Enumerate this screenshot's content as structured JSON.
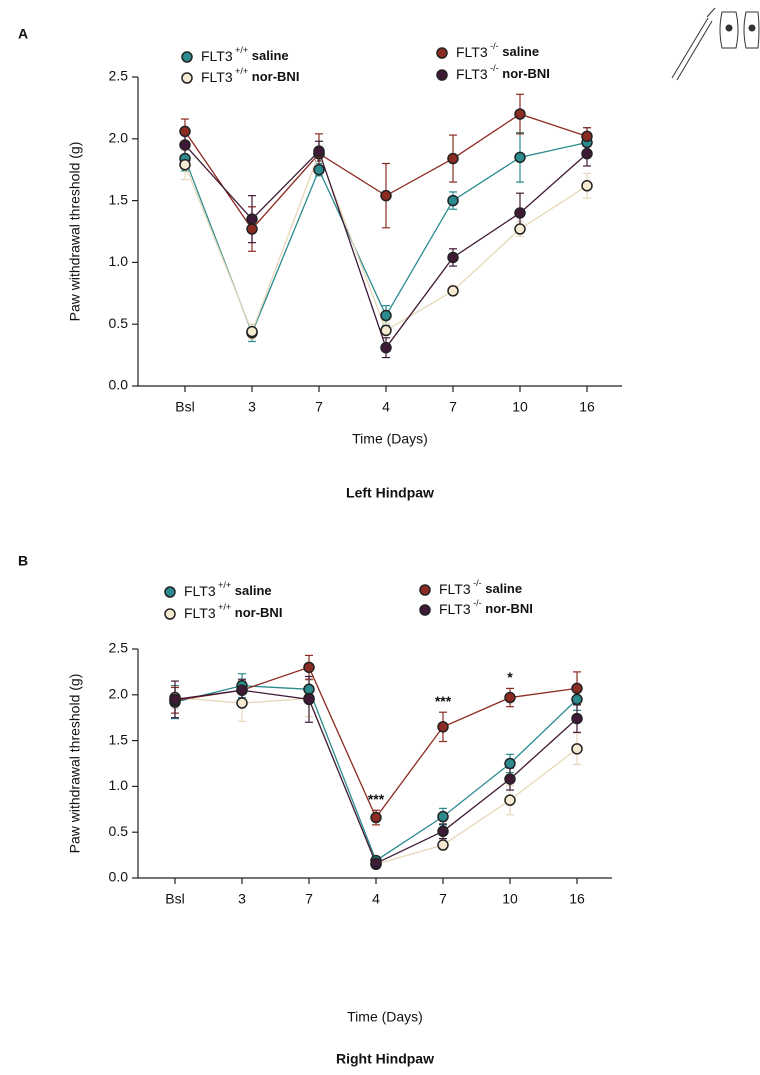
{
  "chart_data": [
    {
      "type": "line",
      "panel_label": "A",
      "title": "Left Hindpaw",
      "x_label": "Time (Days)",
      "y_label": "Paw withdrawal threshold (g)",
      "categories": [
        "Bsl",
        "3",
        "7",
        "4",
        "7",
        "10",
        "16"
      ],
      "ylim": [
        0,
        2.5
      ],
      "yticks": [
        {
          "value": 0,
          "label": "0.0"
        },
        0.5,
        {
          "value": 1,
          "label": "1.0"
        },
        1.5,
        {
          "value": 2,
          "label": "2.0"
        },
        2.5
      ],
      "series": [
        {
          "name": "FLT3 +/+ saline",
          "color": "#2b8b8e",
          "values": [
            1.84,
            0.43,
            1.75,
            0.57,
            1.5,
            1.85,
            1.97
          ],
          "errors": [
            0.1,
            0.07,
            0.05,
            0.08,
            0.07,
            0.2,
            0.12
          ]
        },
        {
          "name": "FLT3 +/+ nor-BNI",
          "color": "#f6ebd2",
          "values": [
            1.79,
            0.44,
            1.88,
            0.45,
            0.77,
            1.27,
            1.62
          ],
          "errors": [
            0.12,
            0.06,
            0.05,
            0.06,
            0.04,
            0.06,
            0.1
          ]
        },
        {
          "name": "FLT3 -/- saline",
          "color": "#8c2b22",
          "values": [
            2.06,
            1.27,
            1.88,
            1.54,
            1.84,
            2.2,
            2.02
          ],
          "errors": [
            0.1,
            0.18,
            0.16,
            0.26,
            0.19,
            0.16,
            0.07
          ]
        },
        {
          "name": "FLT3 -/- nor-BNI",
          "color": "#3f1a36",
          "values": [
            1.95,
            1.35,
            1.9,
            0.31,
            1.04,
            1.4,
            1.88
          ],
          "errors": [
            0.08,
            0.19,
            0.08,
            0.08,
            0.07,
            0.16,
            0.1
          ]
        }
      ]
    },
    {
      "type": "line",
      "panel_label": "B",
      "title": "Right Hindpaw",
      "x_label": "Time (Days)",
      "y_label": "Paw withdrawal threshold (g)",
      "categories": [
        "Bsl",
        "3",
        "7",
        "4",
        "7",
        "10",
        "16"
      ],
      "ylim": [
        0,
        2.5
      ],
      "yticks": [
        {
          "value": 0,
          "label": "0.0"
        },
        0.5,
        {
          "value": 1,
          "label": "1.0"
        },
        1.5,
        {
          "value": 2,
          "label": "2.0"
        },
        2.5
      ],
      "annotations": [
        null,
        null,
        null,
        "***",
        "***",
        "*",
        null
      ],
      "series": [
        {
          "name": "FLT3 +/+ saline",
          "color": "#2b8b8e",
          "values": [
            1.92,
            2.1,
            2.06,
            0.19,
            0.67,
            1.25,
            1.95
          ],
          "errors": [
            0.18,
            0.13,
            0.1,
            0.03,
            0.09,
            0.1,
            0.12
          ]
        },
        {
          "name": "FLT3 +/+ nor-BNI",
          "color": "#f6ebd2",
          "values": [
            1.97,
            1.91,
            1.96,
            0.15,
            0.36,
            0.85,
            1.41
          ],
          "errors": [
            0.12,
            0.2,
            0.2,
            0.03,
            0.05,
            0.16,
            0.17
          ]
        },
        {
          "name": "FLT3 -/- saline",
          "color": "#8c2b22",
          "values": [
            1.94,
            2.05,
            2.3,
            0.66,
            1.65,
            1.97,
            2.07
          ],
          "errors": [
            0.14,
            0.1,
            0.13,
            0.08,
            0.16,
            0.1,
            0.18
          ]
        },
        {
          "name": "FLT3 -/- nor-BNI",
          "color": "#3f1a36",
          "values": [
            1.95,
            2.05,
            1.95,
            0.16,
            0.51,
            1.08,
            1.74
          ],
          "errors": [
            0.2,
            0.12,
            0.25,
            0.03,
            0.08,
            0.12,
            0.15
          ]
        }
      ]
    }
  ]
}
